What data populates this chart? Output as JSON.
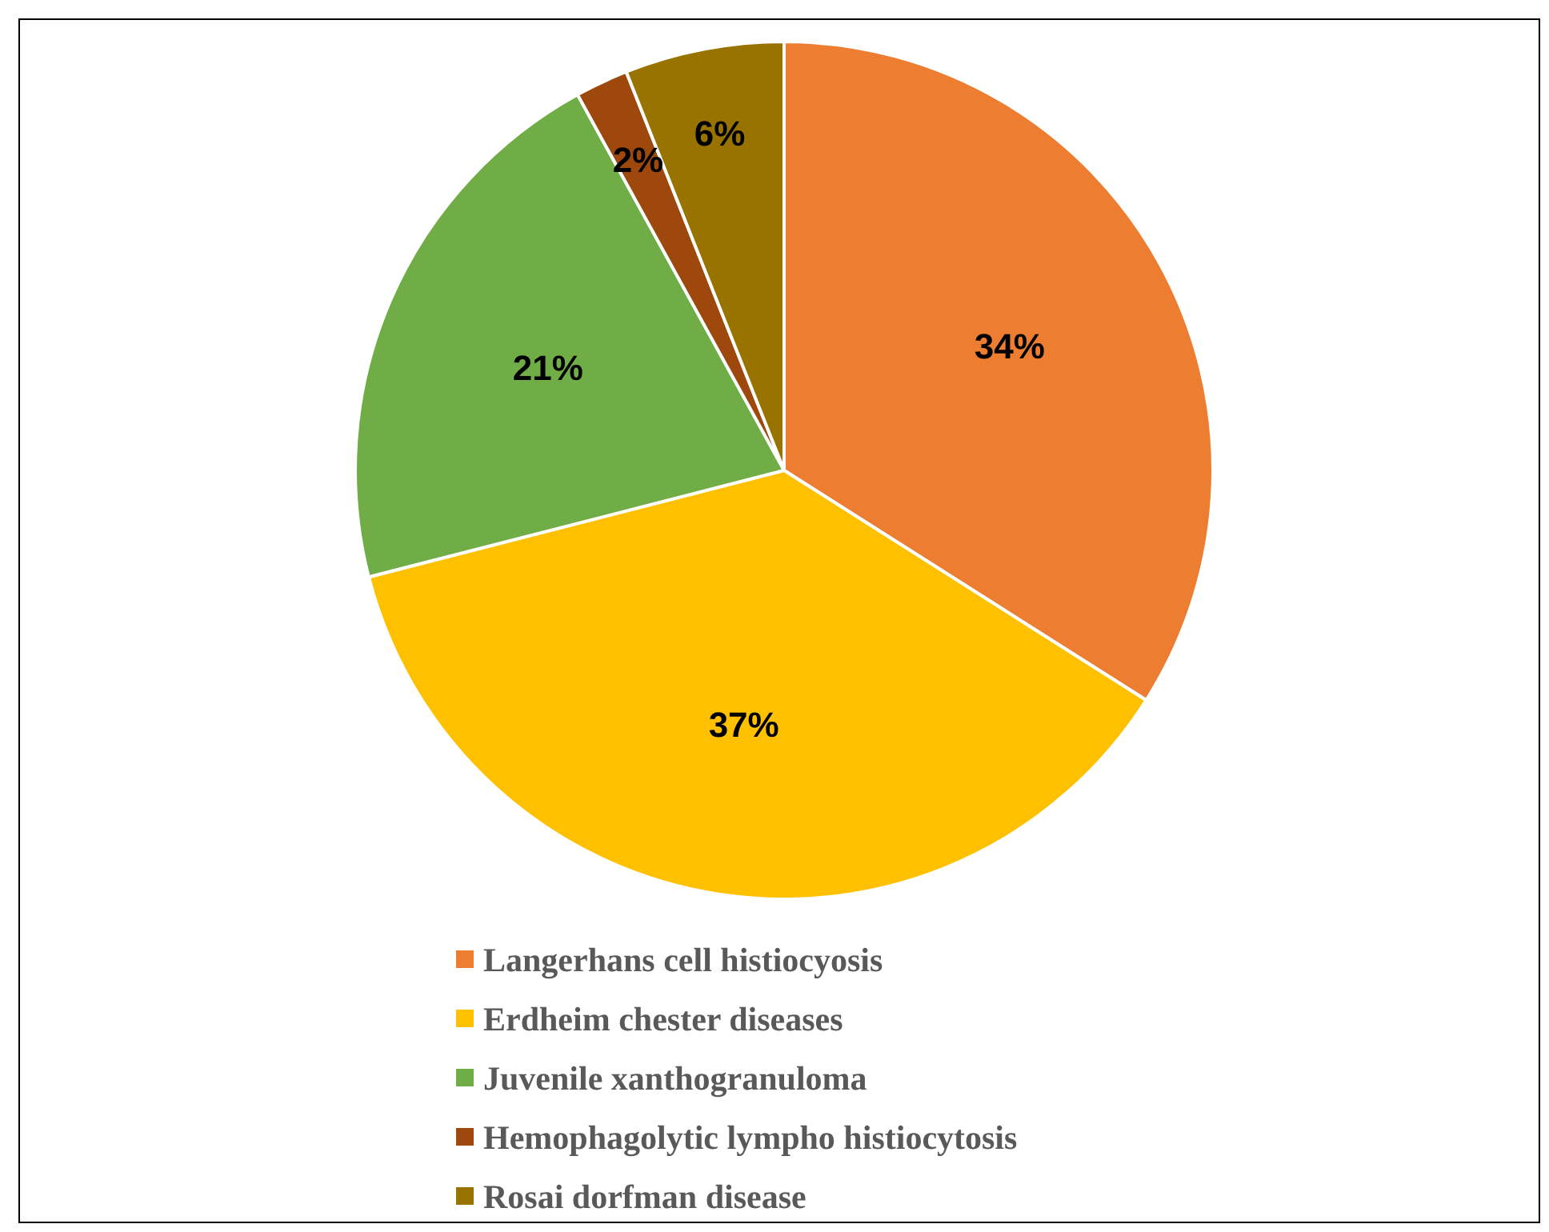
{
  "chart_data": {
    "type": "pie",
    "categories": [
      "Langerhans cell histiocyosis",
      "Erdheim chester diseases",
      "Juvenile xanthogranuloma",
      "Hemophagolytic lympho histiocytosis",
      "Rosai dorfman disease"
    ],
    "values": [
      34,
      37,
      21,
      2,
      6
    ],
    "colors": [
      "#ed7d31",
      "#ffc000",
      "#70ad47",
      "#9e480e",
      "#997300"
    ],
    "value_labels": [
      "34%",
      "37%",
      "21%",
      "2%",
      "6%"
    ],
    "legend": "bottom"
  }
}
